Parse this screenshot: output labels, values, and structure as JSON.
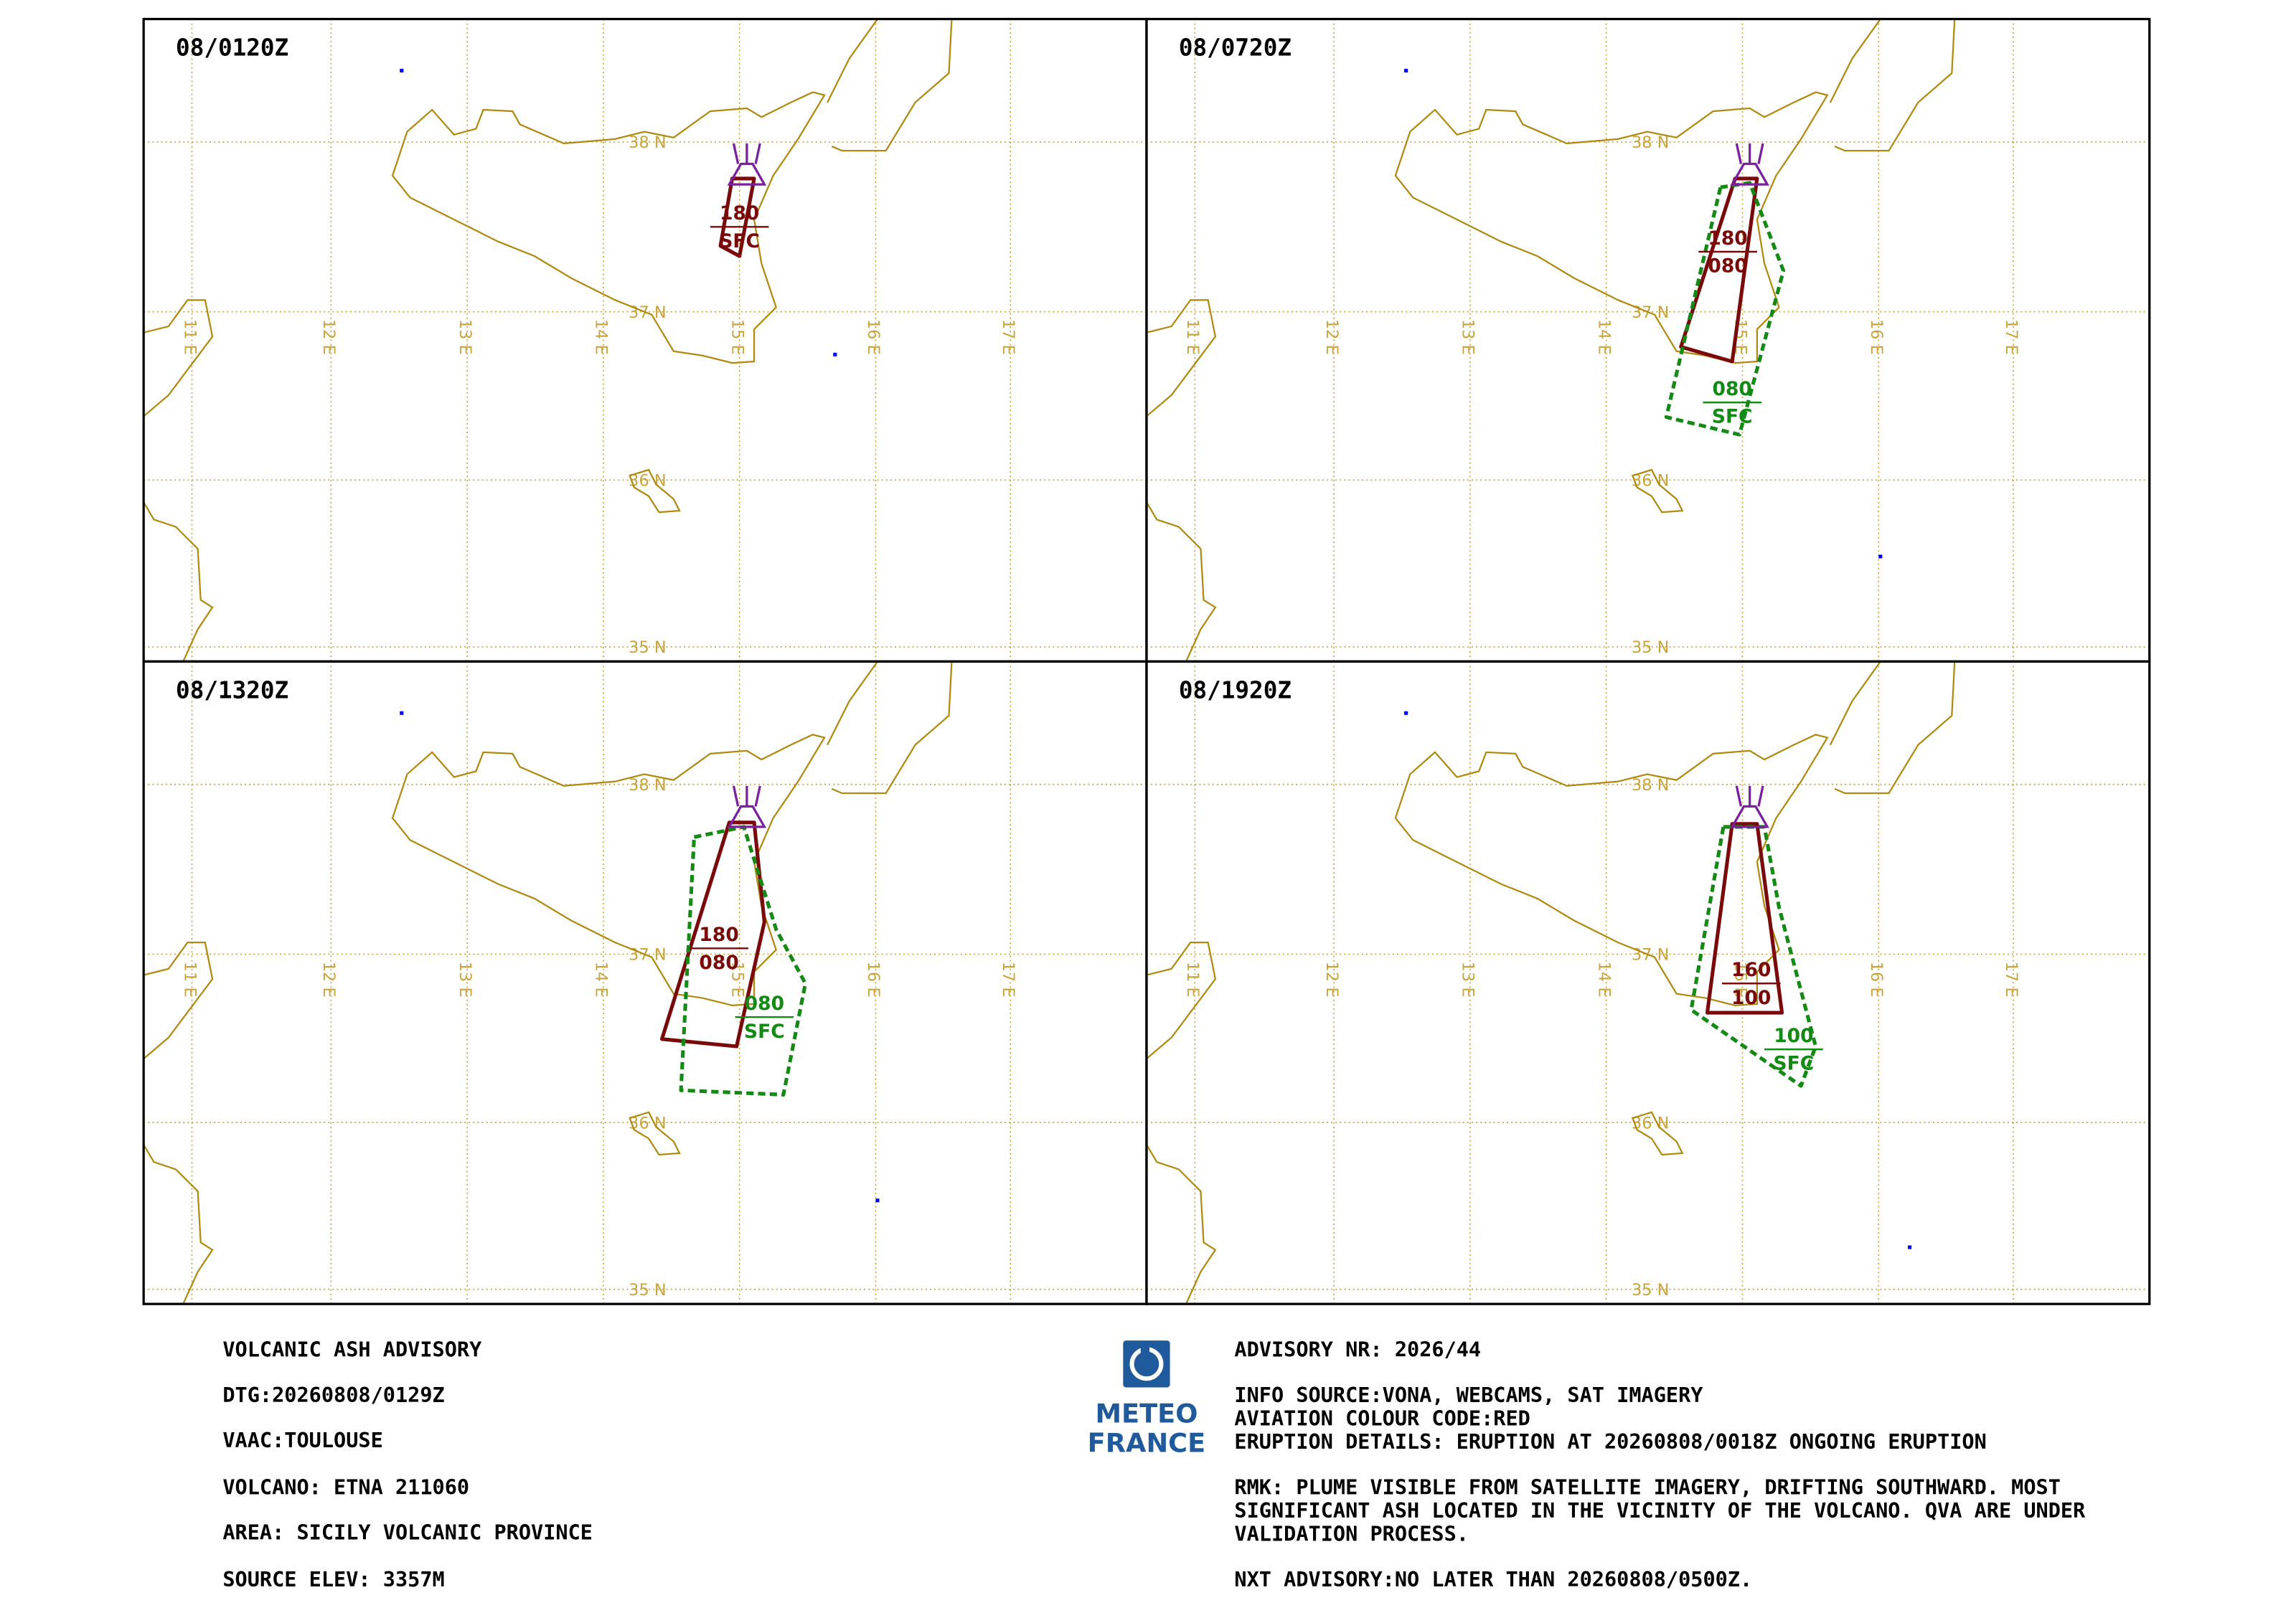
{
  "panels": [
    {
      "time": "08/0120Z",
      "ash_clouds": [
        {
          "top": "180",
          "base": "SFC"
        }
      ]
    },
    {
      "time": "08/0720Z",
      "ash_clouds": [
        {
          "top": "180",
          "base": "080"
        },
        {
          "top": "080",
          "base": "SFC"
        }
      ]
    },
    {
      "time": "08/1320Z",
      "ash_clouds": [
        {
          "top": "180",
          "base": "080"
        },
        {
          "top": "080",
          "base": "SFC"
        }
      ]
    },
    {
      "time": "08/1920Z",
      "ash_clouds": [
        {
          "top": "160",
          "base": "100"
        },
        {
          "top": "100",
          "base": "SFC"
        }
      ]
    }
  ],
  "latitude_labels": [
    "38 N",
    "37 N",
    "36 N",
    "35 N"
  ],
  "longitude_labels": [
    "11 E",
    "12 E",
    "13 E",
    "14 E",
    "15 E",
    "16 E",
    "17 E"
  ],
  "advisory_left": [
    "VOLCANIC ASH ADVISORY",
    "DTG:20260808/0129Z",
    "VAAC:TOULOUSE",
    "VOLCANO: ETNA 211060",
    "AREA: SICILY VOLCANIC PROVINCE",
    "SOURCE ELEV: 3357M"
  ],
  "advisory_right": [
    "ADVISORY NR: 2026/44",
    "INFO SOURCE:VONA, WEBCAMS, SAT IMAGERY",
    "AVIATION COLOUR CODE:RED",
    "ERUPTION DETAILS: ERUPTION AT 20260808/0018Z ONGOING ERUPTION",
    "RMK: PLUME VISIBLE FROM SATELLITE IMAGERY, DRIFTING  SOUTHWARD. MOST",
    "SIGNIFICANT ASH LOCATED IN  THE  VICINITY OF THE VOLCANO. QVA ARE UNDER",
    "VALIDATION PROCESS.",
    "NXT ADVISORY:NO LATER THAN 20260808/0500Z."
  ],
  "logo": [
    "METEO",
    "FRANCE"
  ]
}
